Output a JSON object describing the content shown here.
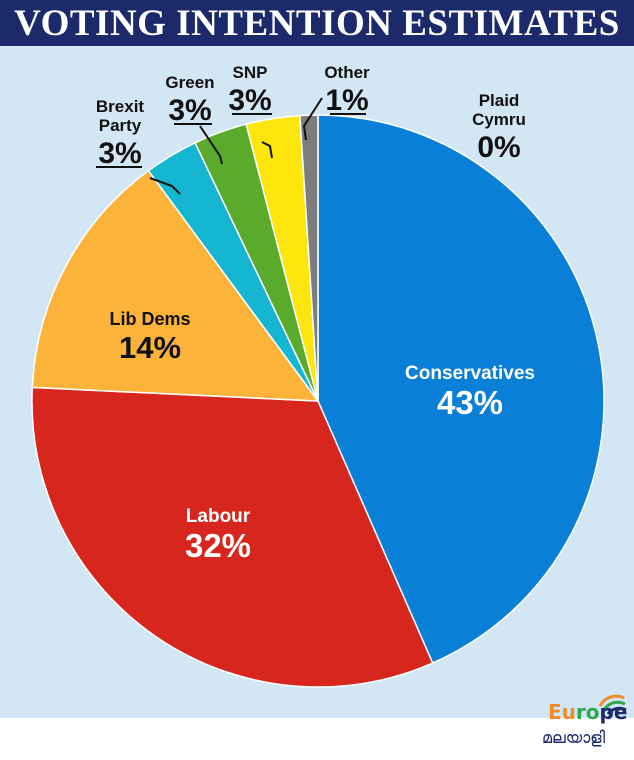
{
  "title": "VOTING INTENTION ESTIMATES",
  "chart_data": {
    "type": "pie",
    "title": "VOTING INTENTION ESTIMATES",
    "slices": [
      {
        "name": "Conservatives",
        "value": 43,
        "label": "43%",
        "color": "#0a7fd8"
      },
      {
        "name": "Labour",
        "value": 32,
        "label": "32%",
        "color": "#d7261e"
      },
      {
        "name": "Lib Dems",
        "value": 14,
        "label": "14%",
        "color": "#fbb33a"
      },
      {
        "name": "Brexit Party",
        "value": 3,
        "label": "3%",
        "color": "#15b6d1"
      },
      {
        "name": "Green",
        "value": 3,
        "label": "3%",
        "color": "#5aab2b"
      },
      {
        "name": "SNP",
        "value": 3,
        "label": "3%",
        "color": "#fde60e"
      },
      {
        "name": "Other",
        "value": 1,
        "label": "1%",
        "color": "#7d7d7d"
      },
      {
        "name": "Plaid Cymru",
        "value": 0,
        "label": "0%",
        "color": "#2e7d32"
      }
    ]
  },
  "watermark": {
    "text": "Europe",
    "subtext": "മലയാളി"
  }
}
